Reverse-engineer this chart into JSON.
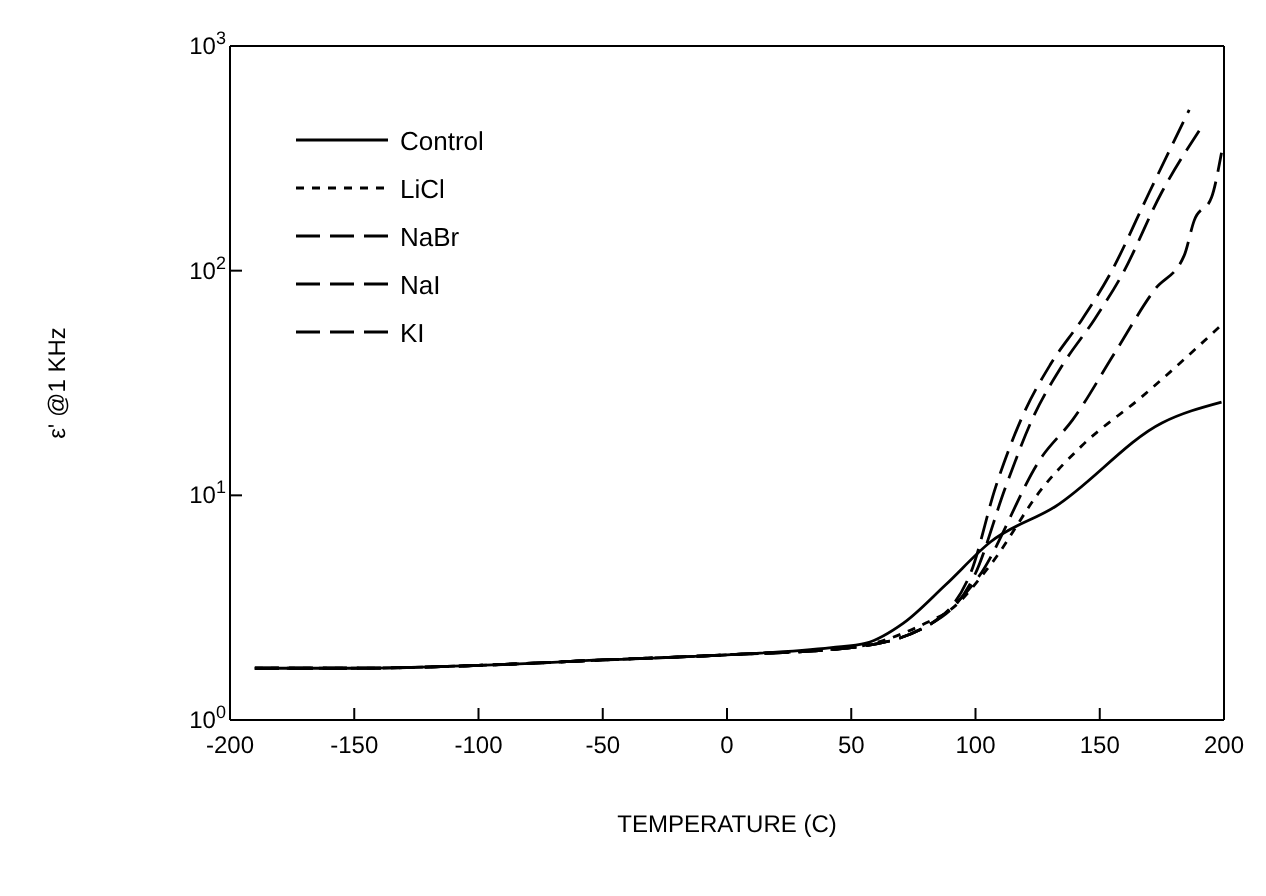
{
  "chart_data": {
    "type": "line",
    "xlabel": "TEMPERATURE (C)",
    "ylabel": "ε' @1 KHz",
    "log": "y",
    "xlim": [
      -200,
      200
    ],
    "xticks": [
      -200,
      -150,
      -100,
      -50,
      0,
      50,
      100,
      150,
      200
    ],
    "ylim": [
      1,
      1000
    ],
    "yticks": [
      {
        "value": 1,
        "label": "10$^{0}$"
      },
      {
        "value": 10,
        "label": "10$^{1}$"
      },
      {
        "value": 100,
        "label": "10$^{2}$"
      },
      {
        "value": 1000,
        "label": "10$^{3}$"
      }
    ],
    "legend": "top left",
    "marker": "none",
    "series": [
      {
        "name": "Control",
        "color": "#000000",
        "line_style": "solid",
        "x": [
          -190,
          -150,
          -100,
          -50,
          0,
          42,
          56,
          71,
          88,
          106,
          132,
          175,
          199
        ],
        "values": [
          1.7,
          1.7,
          1.75,
          1.85,
          1.95,
          2.1,
          2.2,
          2.7,
          4.0,
          6.2,
          8.9,
          21,
          26
        ]
      },
      {
        "name": "LiCl",
        "color": "#000000",
        "line_style": "dotted",
        "x": [
          -190,
          -150,
          -100,
          -50,
          0,
          50,
          80,
          90,
          106,
          127,
          143,
          167,
          198
        ],
        "values": [
          1.7,
          1.7,
          1.75,
          1.85,
          1.95,
          2.1,
          2.7,
          3.1,
          4.9,
          10.8,
          16.7,
          27.5,
          56
        ]
      },
      {
        "name": "NaBr",
        "color": "#000000",
        "line_style": "dashed",
        "x": [
          -190,
          -150,
          -100,
          -50,
          0,
          50,
          80,
          101,
          127,
          139,
          156,
          172,
          184,
          188,
          195,
          199
        ],
        "values": [
          1.7,
          1.7,
          1.75,
          1.85,
          1.95,
          2.1,
          2.6,
          4.3,
          15,
          21.6,
          43,
          82,
          117,
          167,
          212,
          335
        ]
      },
      {
        "name": "NaI",
        "color": "#000000",
        "line_style": "dashed",
        "x": [
          -190,
          -150,
          -100,
          -50,
          0,
          50,
          80,
          100,
          112,
          123,
          135,
          148,
          159,
          175,
          190
        ],
        "values": [
          1.7,
          1.7,
          1.75,
          1.85,
          1.95,
          2.1,
          2.6,
          4.5,
          10.8,
          22,
          38,
          61,
          96,
          224,
          420
        ]
      },
      {
        "name": "KI",
        "color": "#000000",
        "line_style": "dashed",
        "x": [
          -190,
          -150,
          -100,
          -50,
          0,
          50,
          80,
          98,
          108,
          119,
          130,
          143,
          154,
          170,
          186
        ],
        "values": [
          1.7,
          1.7,
          1.75,
          1.85,
          1.95,
          2.1,
          2.6,
          4.5,
          10.8,
          22.6,
          38,
          61,
          96,
          224,
          520
        ]
      }
    ]
  }
}
